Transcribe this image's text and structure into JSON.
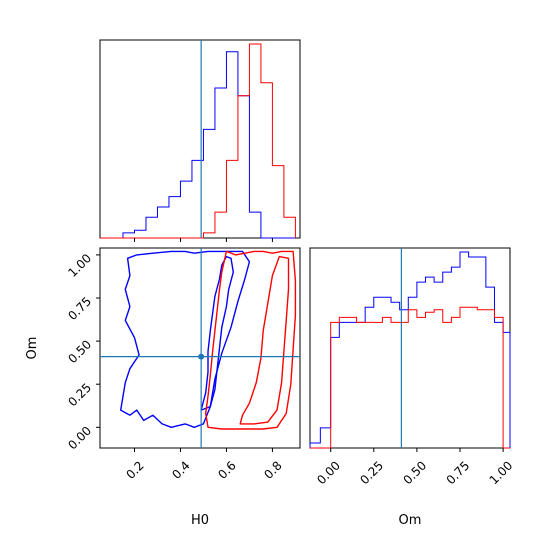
{
  "colors": {
    "prior": "#0000ff",
    "posterior": "#ff0000",
    "truth": "#1f77b4",
    "axes": "#000000"
  },
  "chart_data": {
    "type": "corner",
    "parameters": [
      "H0",
      "Om"
    ],
    "xlabel": "H0",
    "ylabel": "Om",
    "xlabel_om": "Om",
    "truth": {
      "H0": 0.49,
      "Om": 0.41
    },
    "limits": {
      "H0": [
        0.05,
        0.92
      ],
      "Om": [
        -0.12,
        1.04
      ]
    },
    "ticks": {
      "H0": [
        {
          "value": 0.2,
          "label": "0.2"
        },
        {
          "value": 0.4,
          "label": "0.4"
        },
        {
          "value": 0.6,
          "label": "0.6"
        },
        {
          "value": 0.8,
          "label": "0.8"
        }
      ],
      "Om": [
        {
          "value": 0.0,
          "label": "0.00"
        },
        {
          "value": 0.25,
          "label": "0.25"
        },
        {
          "value": 0.5,
          "label": "0.50"
        },
        {
          "value": 0.75,
          "label": "0.75"
        },
        {
          "value": 1.0,
          "label": "1.00"
        }
      ]
    },
    "hist_H0": {
      "bin_edges": [
        0.05,
        0.1,
        0.15,
        0.2,
        0.25,
        0.3,
        0.35,
        0.4,
        0.45,
        0.5,
        0.55,
        0.6,
        0.65,
        0.7,
        0.75,
        0.8,
        0.85,
        0.9
      ],
      "series": [
        {
          "color": "blue",
          "counts": [
            0,
            0,
            2,
            3,
            8,
            12,
            16,
            22,
            30,
            42,
            58,
            72,
            55,
            10,
            0,
            0,
            0
          ]
        },
        {
          "color": "red",
          "counts": [
            0,
            0,
            0,
            0,
            0,
            0,
            0,
            0,
            0,
            2,
            10,
            30,
            55,
            75,
            60,
            28,
            8
          ]
        }
      ]
    },
    "hist_Om": {
      "bin_edges": [
        -0.12,
        -0.06,
        0.0,
        0.05,
        0.1,
        0.15,
        0.2,
        0.25,
        0.3,
        0.35,
        0.4,
        0.45,
        0.5,
        0.55,
        0.6,
        0.65,
        0.7,
        0.75,
        0.8,
        0.85,
        0.9,
        0.95,
        1.0,
        1.04
      ],
      "series": [
        {
          "color": "blue",
          "counts": [
            2,
            8,
            44,
            50,
            50,
            50,
            56,
            60,
            60,
            58,
            55,
            60,
            66,
            68,
            66,
            70,
            72,
            78,
            76,
            76,
            64,
            50,
            46
          ]
        },
        {
          "color": "red",
          "counts": [
            0,
            0,
            50,
            52,
            52,
            50,
            50,
            50,
            52,
            50,
            50,
            55,
            52,
            54,
            55,
            50,
            52,
            56,
            56,
            55,
            55,
            52,
            0
          ]
        }
      ]
    },
    "contours": [
      {
        "color": "blue",
        "level": "outer",
        "points": [
          [
            0.14,
            0.1
          ],
          [
            0.18,
            0.07
          ],
          [
            0.21,
            0.1
          ],
          [
            0.24,
            0.04
          ],
          [
            0.28,
            0.07
          ],
          [
            0.32,
            0.02
          ],
          [
            0.36,
            0.0
          ],
          [
            0.42,
            0.02
          ],
          [
            0.46,
            0.0
          ],
          [
            0.5,
            0.02
          ],
          [
            0.53,
            0.12
          ],
          [
            0.55,
            0.28
          ],
          [
            0.58,
            0.43
          ],
          [
            0.62,
            0.58
          ],
          [
            0.65,
            0.73
          ],
          [
            0.68,
            0.86
          ],
          [
            0.7,
            0.96
          ],
          [
            0.67,
            1.02
          ],
          [
            0.6,
            1.02
          ],
          [
            0.52,
            1.02
          ],
          [
            0.46,
            1.01
          ],
          [
            0.42,
            1.02
          ],
          [
            0.36,
            1.02
          ],
          [
            0.28,
            1.01
          ],
          [
            0.21,
            1.0
          ],
          [
            0.17,
            0.98
          ],
          [
            0.18,
            0.88
          ],
          [
            0.16,
            0.8
          ],
          [
            0.18,
            0.7
          ],
          [
            0.16,
            0.62
          ],
          [
            0.2,
            0.52
          ],
          [
            0.22,
            0.42
          ],
          [
            0.18,
            0.34
          ],
          [
            0.16,
            0.26
          ],
          [
            0.15,
            0.18
          ]
        ]
      },
      {
        "color": "blue",
        "level": "inner",
        "points": [
          [
            0.49,
            0.1
          ],
          [
            0.51,
            0.2
          ],
          [
            0.52,
            0.32
          ],
          [
            0.52,
            0.44
          ],
          [
            0.53,
            0.56
          ],
          [
            0.54,
            0.66
          ],
          [
            0.55,
            0.76
          ],
          [
            0.57,
            0.86
          ],
          [
            0.58,
            0.94
          ],
          [
            0.6,
            0.99
          ],
          [
            0.62,
            0.98
          ],
          [
            0.63,
            0.9
          ],
          [
            0.61,
            0.8
          ],
          [
            0.6,
            0.7
          ],
          [
            0.58,
            0.58
          ],
          [
            0.57,
            0.46
          ],
          [
            0.56,
            0.34
          ],
          [
            0.55,
            0.22
          ],
          [
            0.53,
            0.12
          ]
        ]
      },
      {
        "color": "red",
        "level": "outer",
        "points": [
          [
            0.52,
            0.0
          ],
          [
            0.58,
            -0.01
          ],
          [
            0.64,
            -0.01
          ],
          [
            0.7,
            -0.01
          ],
          [
            0.76,
            -0.01
          ],
          [
            0.82,
            0.0
          ],
          [
            0.86,
            0.08
          ],
          [
            0.88,
            0.25
          ],
          [
            0.89,
            0.45
          ],
          [
            0.9,
            0.65
          ],
          [
            0.9,
            0.85
          ],
          [
            0.89,
            1.02
          ],
          [
            0.84,
            1.02
          ],
          [
            0.8,
            1.01
          ],
          [
            0.76,
            1.02
          ],
          [
            0.72,
            1.02
          ],
          [
            0.68,
            1.01
          ],
          [
            0.64,
            1.0
          ],
          [
            0.6,
            1.02
          ],
          [
            0.58,
            0.9
          ],
          [
            0.57,
            0.8
          ],
          [
            0.56,
            0.68
          ],
          [
            0.55,
            0.56
          ],
          [
            0.54,
            0.44
          ],
          [
            0.53,
            0.3
          ],
          [
            0.52,
            0.18
          ],
          [
            0.51,
            0.08
          ]
        ]
      },
      {
        "color": "red",
        "level": "inner",
        "points": [
          [
            0.66,
            0.02
          ],
          [
            0.72,
            0.02
          ],
          [
            0.78,
            0.03
          ],
          [
            0.82,
            0.1
          ],
          [
            0.84,
            0.26
          ],
          [
            0.85,
            0.44
          ],
          [
            0.86,
            0.62
          ],
          [
            0.87,
            0.8
          ],
          [
            0.87,
            0.98
          ],
          [
            0.83,
            0.99
          ],
          [
            0.8,
            0.88
          ],
          [
            0.78,
            0.72
          ],
          [
            0.76,
            0.56
          ],
          [
            0.75,
            0.4
          ],
          [
            0.73,
            0.26
          ],
          [
            0.7,
            0.14
          ],
          [
            0.67,
            0.07
          ]
        ]
      }
    ]
  }
}
